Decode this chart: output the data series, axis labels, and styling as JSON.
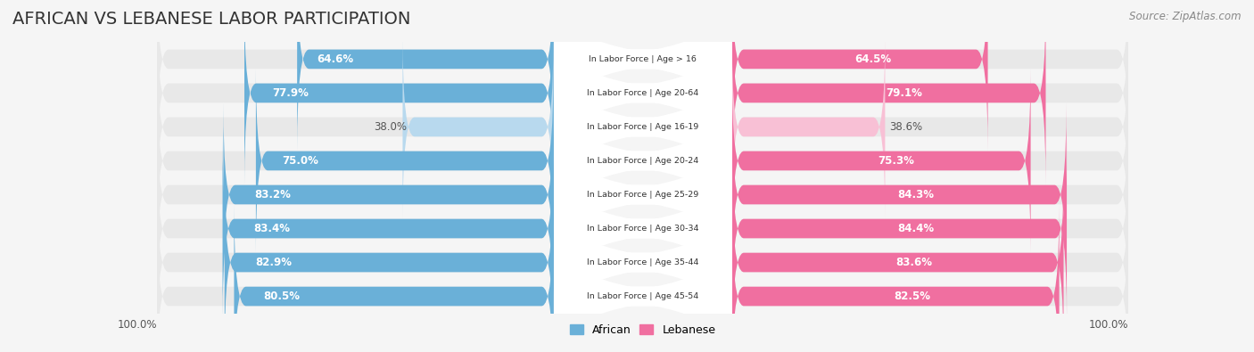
{
  "title": "AFRICAN VS LEBANESE LABOR PARTICIPATION",
  "source": "Source: ZipAtlas.com",
  "categories": [
    "In Labor Force | Age > 16",
    "In Labor Force | Age 20-64",
    "In Labor Force | Age 16-19",
    "In Labor Force | Age 20-24",
    "In Labor Force | Age 25-29",
    "In Labor Force | Age 30-34",
    "In Labor Force | Age 35-44",
    "In Labor Force | Age 45-54"
  ],
  "african_values": [
    64.6,
    77.9,
    38.0,
    75.0,
    83.2,
    83.4,
    82.9,
    80.5
  ],
  "lebanese_values": [
    64.5,
    79.1,
    38.6,
    75.3,
    84.3,
    84.4,
    83.6,
    82.5
  ],
  "african_color": "#6ab0d8",
  "african_color_light": "#b8d9ee",
  "lebanese_color": "#f06fa0",
  "lebanese_color_light": "#f8c0d5",
  "background_color": "#f5f5f5",
  "bar_bg_color": "#e8e8e8",
  "title_fontsize": 14,
  "label_fontsize": 8.5,
  "value_fontsize": 8.5,
  "legend_fontsize": 9,
  "max_value": 100.0,
  "xlim_left_label": "100.0%",
  "xlim_right_label": "100.0%"
}
